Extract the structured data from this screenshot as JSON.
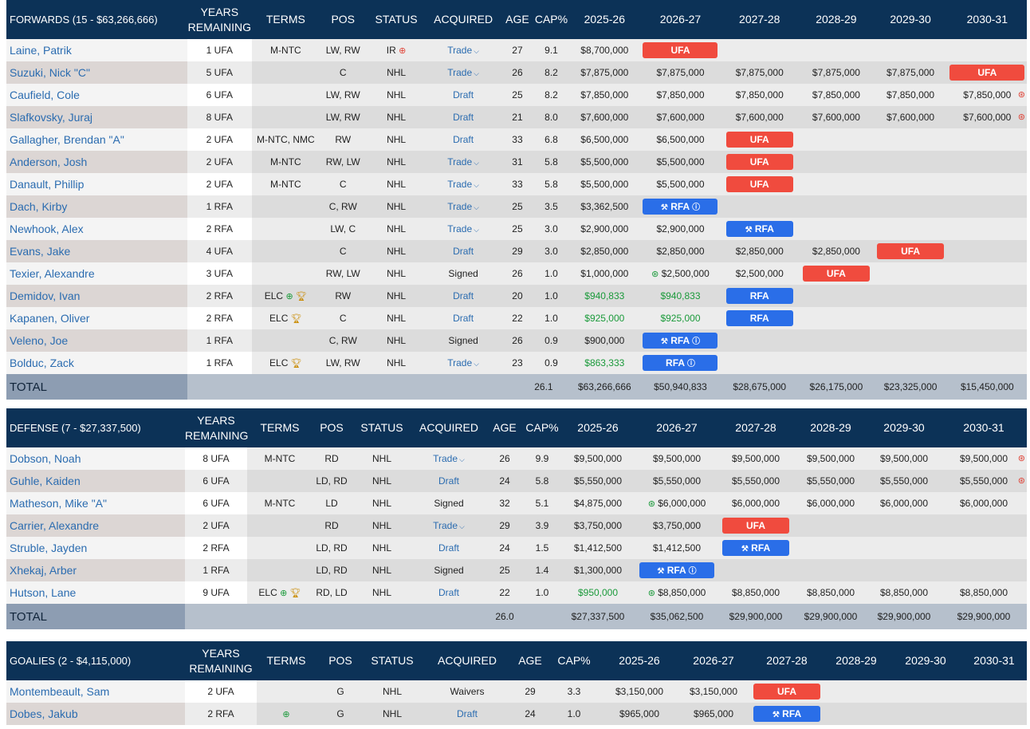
{
  "headers": {
    "years": [
      "YEARS",
      "REMAINING"
    ],
    "terms": "TERMS",
    "pos": "POS",
    "status": "STATUS",
    "acquired": "ACQUIRED",
    "age": "AGE",
    "cap": "CAP%",
    "seasons": [
      "2025-26",
      "2026-27",
      "2027-28",
      "2028-29",
      "2029-30",
      "2030-31"
    ]
  },
  "icons": {
    "arrow_right": "circle-arrow-right",
    "info": "info-circle",
    "trophy": "trophy",
    "chevron": "chevron-down",
    "gavel": "gavel"
  },
  "colors": {
    "header": "#0c3257",
    "ufa": "#f04b3e",
    "rfa": "#2a6ee8",
    "link": "#2b6cb0",
    "green": "#1a9a3a"
  },
  "sections": [
    {
      "title": "FORWARDS (15 - $63,266,666)",
      "players": [
        {
          "name": "Laine, Patrik",
          "years": "1 UFA",
          "terms": "M-NTC",
          "pos": "LW, RW",
          "status": "IR",
          "acquired": "Trade",
          "age": "27",
          "cap": "9.1",
          "seasons": [
            "$8,700,000",
            "UFA",
            "",
            "",
            "",
            ""
          ]
        },
        {
          "name": "Suzuki, Nick \"C\"",
          "years": "5 UFA",
          "terms": "",
          "pos": "C",
          "status": "NHL",
          "acquired": "Trade",
          "age": "26",
          "cap": "8.2",
          "seasons": [
            "$7,875,000",
            "$7,875,000",
            "$7,875,000",
            "$7,875,000",
            "$7,875,000",
            "UFA"
          ]
        },
        {
          "name": "Caufield, Cole",
          "years": "6 UFA",
          "terms": "",
          "pos": "LW, RW",
          "status": "NHL",
          "acquired": "Draft",
          "age": "25",
          "cap": "8.2",
          "seasons": [
            "$7,850,000",
            "$7,850,000",
            "$7,850,000",
            "$7,850,000",
            "$7,850,000",
            "$7,850,000"
          ]
        },
        {
          "name": "Slafkovsky, Juraj",
          "years": "8 UFA",
          "terms": "",
          "pos": "LW, RW",
          "status": "NHL",
          "acquired": "Draft",
          "age": "21",
          "cap": "8.0",
          "seasons": [
            "$7,600,000",
            "$7,600,000",
            "$7,600,000",
            "$7,600,000",
            "$7,600,000",
            "$7,600,000"
          ]
        },
        {
          "name": "Gallagher, Brendan \"A\"",
          "years": "2 UFA",
          "terms": "M-NTC, NMC",
          "pos": "RW",
          "status": "NHL",
          "acquired": "Draft",
          "age": "33",
          "cap": "6.8",
          "seasons": [
            "$6,500,000",
            "$6,500,000",
            "UFA",
            "",
            "",
            ""
          ]
        },
        {
          "name": "Anderson, Josh",
          "years": "2 UFA",
          "terms": "M-NTC",
          "pos": "RW, LW",
          "status": "NHL",
          "acquired": "Trade",
          "age": "31",
          "cap": "5.8",
          "seasons": [
            "$5,500,000",
            "$5,500,000",
            "UFA",
            "",
            "",
            ""
          ]
        },
        {
          "name": "Danault, Phillip",
          "years": "2 UFA",
          "terms": "M-NTC",
          "pos": "C",
          "status": "NHL",
          "acquired": "Trade",
          "age": "33",
          "cap": "5.8",
          "seasons": [
            "$5,500,000",
            "$5,500,000",
            "UFA",
            "",
            "",
            ""
          ]
        },
        {
          "name": "Dach, Kirby",
          "years": "1 RFA",
          "terms": "",
          "pos": "C, RW",
          "status": "NHL",
          "acquired": "Trade",
          "age": "25",
          "cap": "3.5",
          "seasons": [
            "$3,362,500",
            "RFA",
            "",
            "",
            "",
            ""
          ]
        },
        {
          "name": "Newhook, Alex",
          "years": "2 RFA",
          "terms": "",
          "pos": "LW, C",
          "status": "NHL",
          "acquired": "Trade",
          "age": "25",
          "cap": "3.0",
          "seasons": [
            "$2,900,000",
            "$2,900,000",
            "RFA",
            "",
            "",
            ""
          ]
        },
        {
          "name": "Evans, Jake",
          "years": "4 UFA",
          "terms": "",
          "pos": "C",
          "status": "NHL",
          "acquired": "Draft",
          "age": "29",
          "cap": "3.0",
          "seasons": [
            "$2,850,000",
            "$2,850,000",
            "$2,850,000",
            "$2,850,000",
            "UFA",
            ""
          ]
        },
        {
          "name": "Texier, Alexandre",
          "years": "3 UFA",
          "terms": "",
          "pos": "RW, LW",
          "status": "NHL",
          "acquired": "Signed",
          "age": "26",
          "cap": "1.0",
          "seasons": [
            "$1,000,000",
            "$2,500,000",
            "$2,500,000",
            "UFA",
            "",
            ""
          ]
        },
        {
          "name": "Demidov, Ivan",
          "years": "2 RFA",
          "terms": "ELC",
          "pos": "RW",
          "status": "NHL",
          "acquired": "Draft",
          "age": "20",
          "cap": "1.0",
          "seasons": [
            "$940,833",
            "$940,833",
            "RFA",
            "",
            "",
            ""
          ]
        },
        {
          "name": "Kapanen, Oliver",
          "years": "2 RFA",
          "terms": "ELC",
          "pos": "C",
          "status": "NHL",
          "acquired": "Draft",
          "age": "22",
          "cap": "1.0",
          "seasons": [
            "$925,000",
            "$925,000",
            "RFA",
            "",
            "",
            ""
          ]
        },
        {
          "name": "Veleno, Joe",
          "years": "1 RFA",
          "terms": "",
          "pos": "C, RW",
          "status": "NHL",
          "acquired": "Signed",
          "age": "26",
          "cap": "0.9",
          "seasons": [
            "$900,000",
            "RFA",
            "",
            "",
            "",
            ""
          ]
        },
        {
          "name": "Bolduc, Zack",
          "years": "1 RFA",
          "terms": "ELC",
          "pos": "LW, RW",
          "status": "NHL",
          "acquired": "Trade",
          "age": "23",
          "cap": "0.9",
          "seasons": [
            "$863,333",
            "RFA",
            "",
            "",
            "",
            ""
          ]
        }
      ],
      "total": {
        "label": "TOTAL",
        "cap": "26.1",
        "seasons": [
          "$63,266,666",
          "$50,940,833",
          "$28,675,000",
          "$26,175,000",
          "$23,325,000",
          "$15,450,000"
        ]
      }
    },
    {
      "title": "DEFENSE (7 - $27,337,500)",
      "players": [
        {
          "name": "Dobson, Noah",
          "years": "8 UFA",
          "terms": "M-NTC",
          "pos": "RD",
          "status": "NHL",
          "acquired": "Trade",
          "age": "26",
          "cap": "9.9",
          "seasons": [
            "$9,500,000",
            "$9,500,000",
            "$9,500,000",
            "$9,500,000",
            "$9,500,000",
            "$9,500,000"
          ]
        },
        {
          "name": "Guhle, Kaiden",
          "years": "6 UFA",
          "terms": "",
          "pos": "LD, RD",
          "status": "NHL",
          "acquired": "Draft",
          "age": "24",
          "cap": "5.8",
          "seasons": [
            "$5,550,000",
            "$5,550,000",
            "$5,550,000",
            "$5,550,000",
            "$5,550,000",
            "$5,550,000"
          ]
        },
        {
          "name": "Matheson, Mike \"A\"",
          "years": "6 UFA",
          "terms": "M-NTC",
          "pos": "LD",
          "status": "NHL",
          "acquired": "Signed",
          "age": "32",
          "cap": "5.1",
          "seasons": [
            "$4,875,000",
            "$6,000,000",
            "$6,000,000",
            "$6,000,000",
            "$6,000,000",
            "$6,000,000"
          ]
        },
        {
          "name": "Carrier, Alexandre",
          "years": "2 UFA",
          "terms": "",
          "pos": "RD",
          "status": "NHL",
          "acquired": "Trade",
          "age": "29",
          "cap": "3.9",
          "seasons": [
            "$3,750,000",
            "$3,750,000",
            "UFA",
            "",
            "",
            ""
          ]
        },
        {
          "name": "Struble, Jayden",
          "years": "2 RFA",
          "terms": "",
          "pos": "LD, RD",
          "status": "NHL",
          "acquired": "Draft",
          "age": "24",
          "cap": "1.5",
          "seasons": [
            "$1,412,500",
            "$1,412,500",
            "RFA",
            "",
            "",
            ""
          ]
        },
        {
          "name": "Xhekaj, Arber",
          "years": "1 RFA",
          "terms": "",
          "pos": "LD, RD",
          "status": "NHL",
          "acquired": "Signed",
          "age": "25",
          "cap": "1.4",
          "seasons": [
            "$1,300,000",
            "RFA",
            "",
            "",
            "",
            ""
          ]
        },
        {
          "name": "Hutson, Lane",
          "years": "9 UFA",
          "terms": "ELC",
          "pos": "RD, LD",
          "status": "NHL",
          "acquired": "Draft",
          "age": "22",
          "cap": "1.0",
          "seasons": [
            "$950,000",
            "$8,850,000",
            "$8,850,000",
            "$8,850,000",
            "$8,850,000",
            "$8,850,000"
          ]
        }
      ],
      "total": {
        "label": "TOTAL",
        "cap": "26.0",
        "seasons": [
          "$27,337,500",
          "$35,062,500",
          "$29,900,000",
          "$29,900,000",
          "$29,900,000",
          "$29,900,000"
        ]
      }
    },
    {
      "title": "GOALIES (2 - $4,115,000)",
      "players": [
        {
          "name": "Montembeault, Sam",
          "years": "2 UFA",
          "terms": "",
          "pos": "G",
          "status": "NHL",
          "acquired": "Waivers",
          "age": "29",
          "cap": "3.3",
          "seasons": [
            "$3,150,000",
            "$3,150,000",
            "UFA",
            "",
            "",
            ""
          ]
        },
        {
          "name": "Dobes, Jakub",
          "years": "2 RFA",
          "terms": "",
          "pos": "G",
          "status": "NHL",
          "acquired": "Draft",
          "age": "24",
          "cap": "1.0",
          "seasons": [
            "$965,000",
            "$965,000",
            "RFA",
            "",
            "",
            ""
          ]
        }
      ]
    }
  ]
}
